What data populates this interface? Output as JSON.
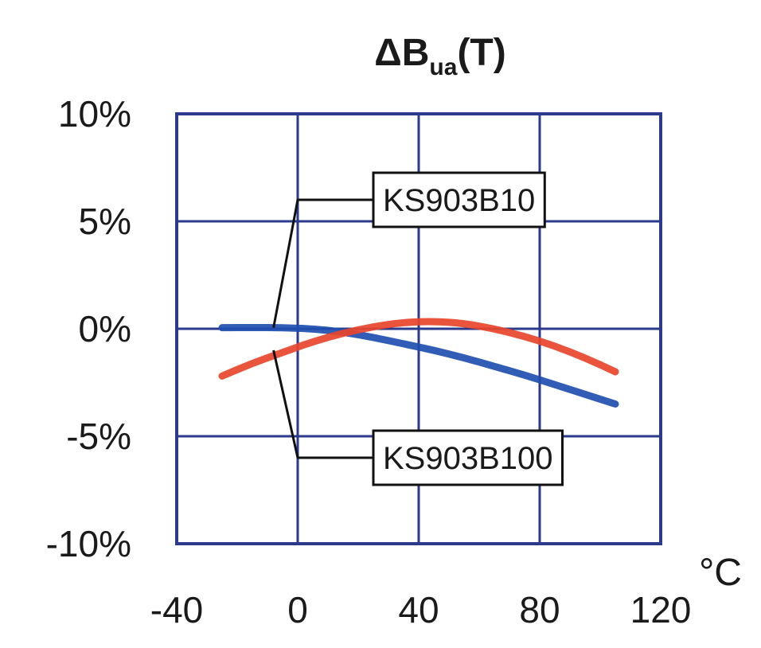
{
  "chart_data": {
    "type": "line",
    "title": "ΔB",
    "title_subscript": "ua",
    "title_suffix": "(T)",
    "x_unit": "°C",
    "xlim": [
      -40,
      120
    ],
    "ylim": [
      -10,
      10
    ],
    "x_ticks": [
      -40,
      0,
      40,
      80,
      120
    ],
    "x_tick_labels": [
      "-40",
      "0",
      "40",
      "80",
      "120"
    ],
    "y_ticks": [
      10,
      5,
      0,
      -5,
      -10
    ],
    "y_tick_labels": [
      "10%",
      "5%",
      "0%",
      "-5%",
      "-10%"
    ],
    "grid": true,
    "colors": {
      "frame": "#2b3a8c",
      "grid": "#2b3a8c",
      "blue_series": "#1f4fb0",
      "red_series": "#e8452c",
      "callout": "#111111"
    },
    "series": [
      {
        "name": "KS903B10",
        "color": "#1f4fb0",
        "x": [
          -25,
          -15,
          -5,
          5,
          15,
          25,
          35,
          45,
          55,
          65,
          75,
          85,
          95,
          105
        ],
        "y": [
          0.05,
          0.06,
          0.05,
          0.0,
          -0.15,
          -0.4,
          -0.7,
          -1.0,
          -1.35,
          -1.75,
          -2.15,
          -2.6,
          -3.05,
          -3.5
        ]
      },
      {
        "name": "KS903B100",
        "color": "#e8452c",
        "x": [
          -25,
          -15,
          -5,
          5,
          15,
          25,
          35,
          45,
          55,
          65,
          75,
          85,
          95,
          105
        ],
        "y": [
          -2.2,
          -1.6,
          -1.1,
          -0.6,
          -0.2,
          0.1,
          0.3,
          0.35,
          0.25,
          0.0,
          -0.35,
          -0.8,
          -1.35,
          -2.0
        ]
      }
    ],
    "annotations": [
      {
        "text": "KS903B10",
        "series": 0,
        "anchor": [
          -8,
          0.05
        ],
        "elbow": [
          0,
          6
        ],
        "label_at": [
          25,
          6
        ]
      },
      {
        "text": "KS903B100",
        "series": 1,
        "anchor": [
          -8,
          -1.0
        ],
        "elbow": [
          0,
          -6
        ],
        "label_at": [
          25,
          -6
        ]
      }
    ]
  }
}
